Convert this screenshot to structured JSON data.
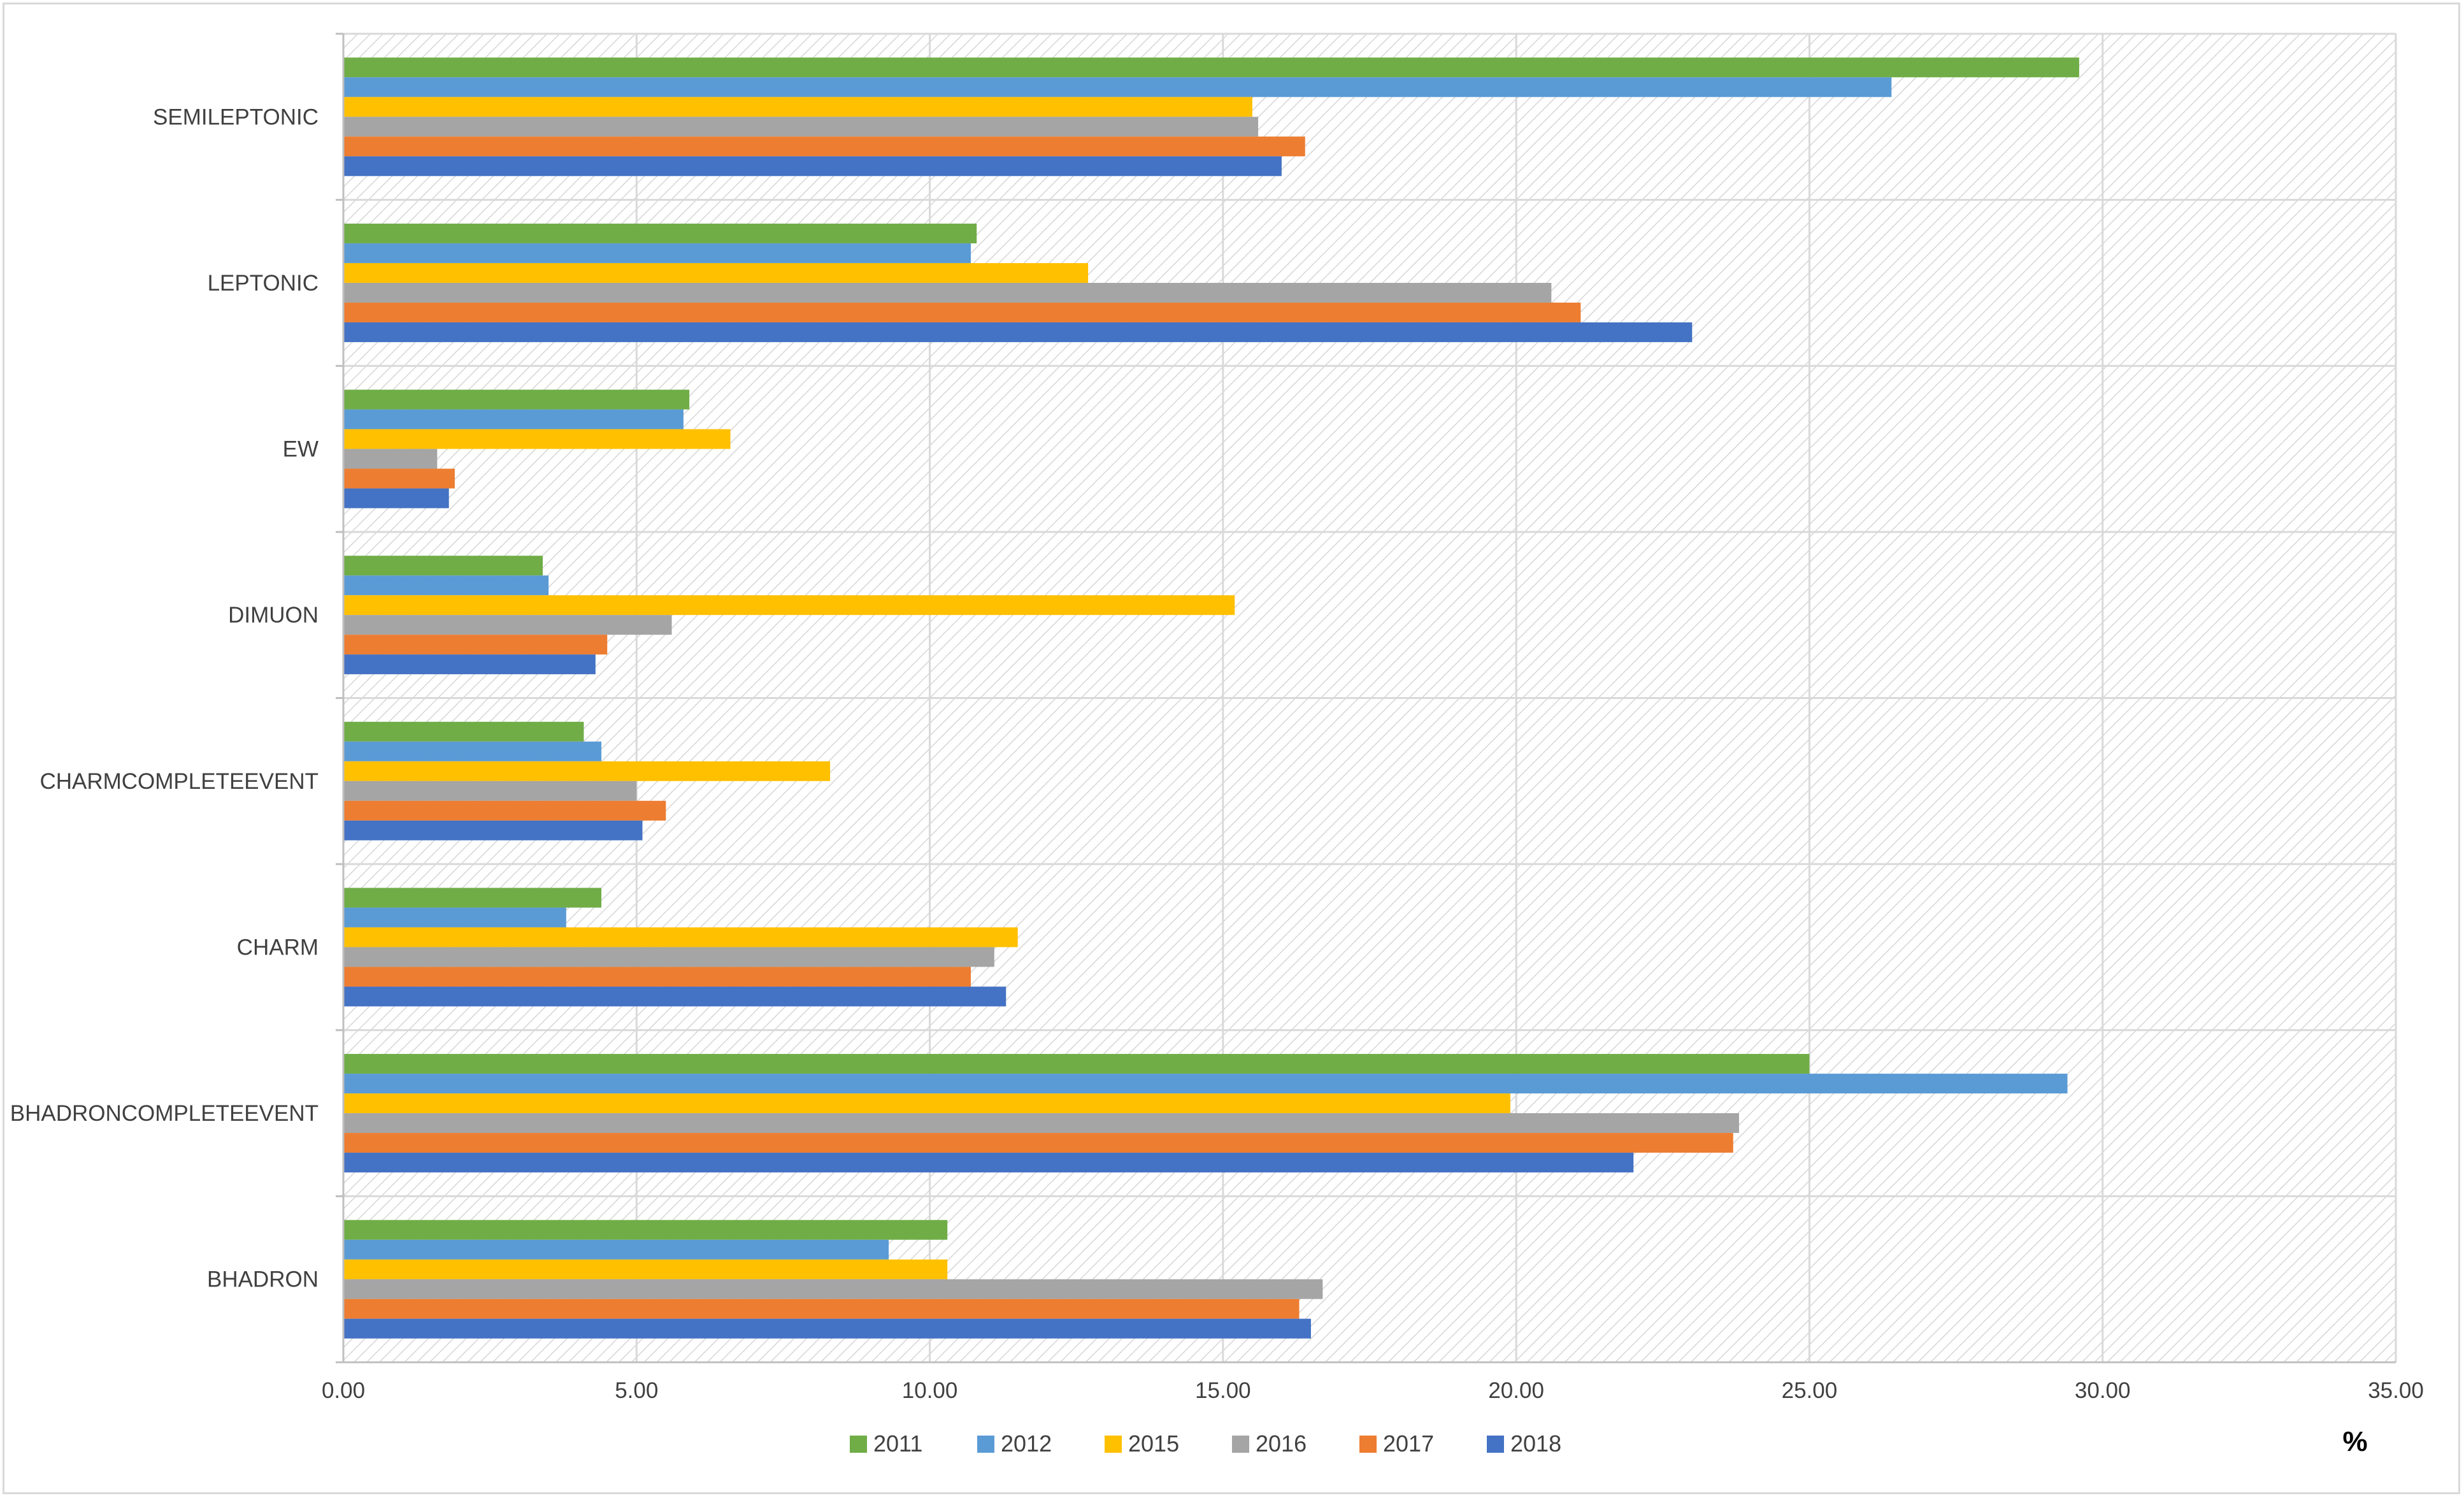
{
  "chart_data": {
    "type": "bar",
    "orientation": "horizontal",
    "title": "",
    "xlabel": "%",
    "ylabel": "",
    "xlim": [
      0,
      35
    ],
    "x_ticks": [
      "0.00",
      "5.00",
      "10.00",
      "15.00",
      "20.00",
      "25.00",
      "30.00",
      "35.00"
    ],
    "categories": [
      "SEMILEPTONIC",
      "LEPTONIC",
      "EW",
      "DIMUON",
      "CHARMCOMPLETEEVENT",
      "CHARM",
      "BHADRONCOMPLETEEVENT",
      "BHADRON"
    ],
    "series": [
      {
        "name": "2011",
        "color": "#70ad47",
        "values": [
          29.6,
          10.8,
          5.9,
          3.4,
          4.1,
          4.4,
          25.0,
          10.3
        ]
      },
      {
        "name": "2012",
        "color": "#5b9bd5",
        "values": [
          26.4,
          10.7,
          5.8,
          3.5,
          4.4,
          3.8,
          29.4,
          9.3
        ]
      },
      {
        "name": "2015",
        "color": "#ffc000",
        "values": [
          15.5,
          12.7,
          6.6,
          15.2,
          8.3,
          11.5,
          19.9,
          10.3
        ]
      },
      {
        "name": "2016",
        "color": "#a5a5a5",
        "values": [
          15.6,
          20.6,
          1.6,
          5.6,
          5.0,
          11.1,
          23.8,
          16.7
        ]
      },
      {
        "name": "2017",
        "color": "#ed7d31",
        "values": [
          16.4,
          21.1,
          1.9,
          4.5,
          5.5,
          10.7,
          23.7,
          16.3
        ]
      },
      {
        "name": "2018",
        "color": "#4472c4",
        "values": [
          16.0,
          23.0,
          1.8,
          4.3,
          5.1,
          11.3,
          22.0,
          16.5
        ]
      }
    ],
    "grid": true,
    "legend_position": "bottom"
  }
}
